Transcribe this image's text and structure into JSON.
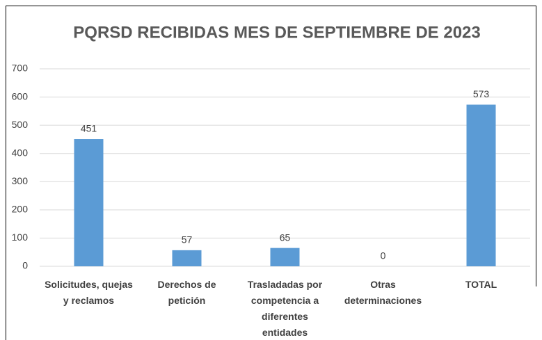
{
  "chart_data": {
    "type": "bar",
    "title": "PQRSD RECIBIDAS MES DE SEPTIEMBRE DE 2023",
    "categories": [
      "Solicitudes, quejas y reclamos",
      "Derechos de petición",
      "Trasladadas por competencia a diferentes entidades",
      "Otras determinaciones",
      "TOTAL"
    ],
    "values": [
      451,
      57,
      65,
      0,
      573
    ],
    "color": "#5b9bd5",
    "ylim": [
      0,
      700
    ],
    "yticks": [
      0,
      100,
      200,
      300,
      400,
      500,
      600,
      700
    ],
    "grid": true
  }
}
